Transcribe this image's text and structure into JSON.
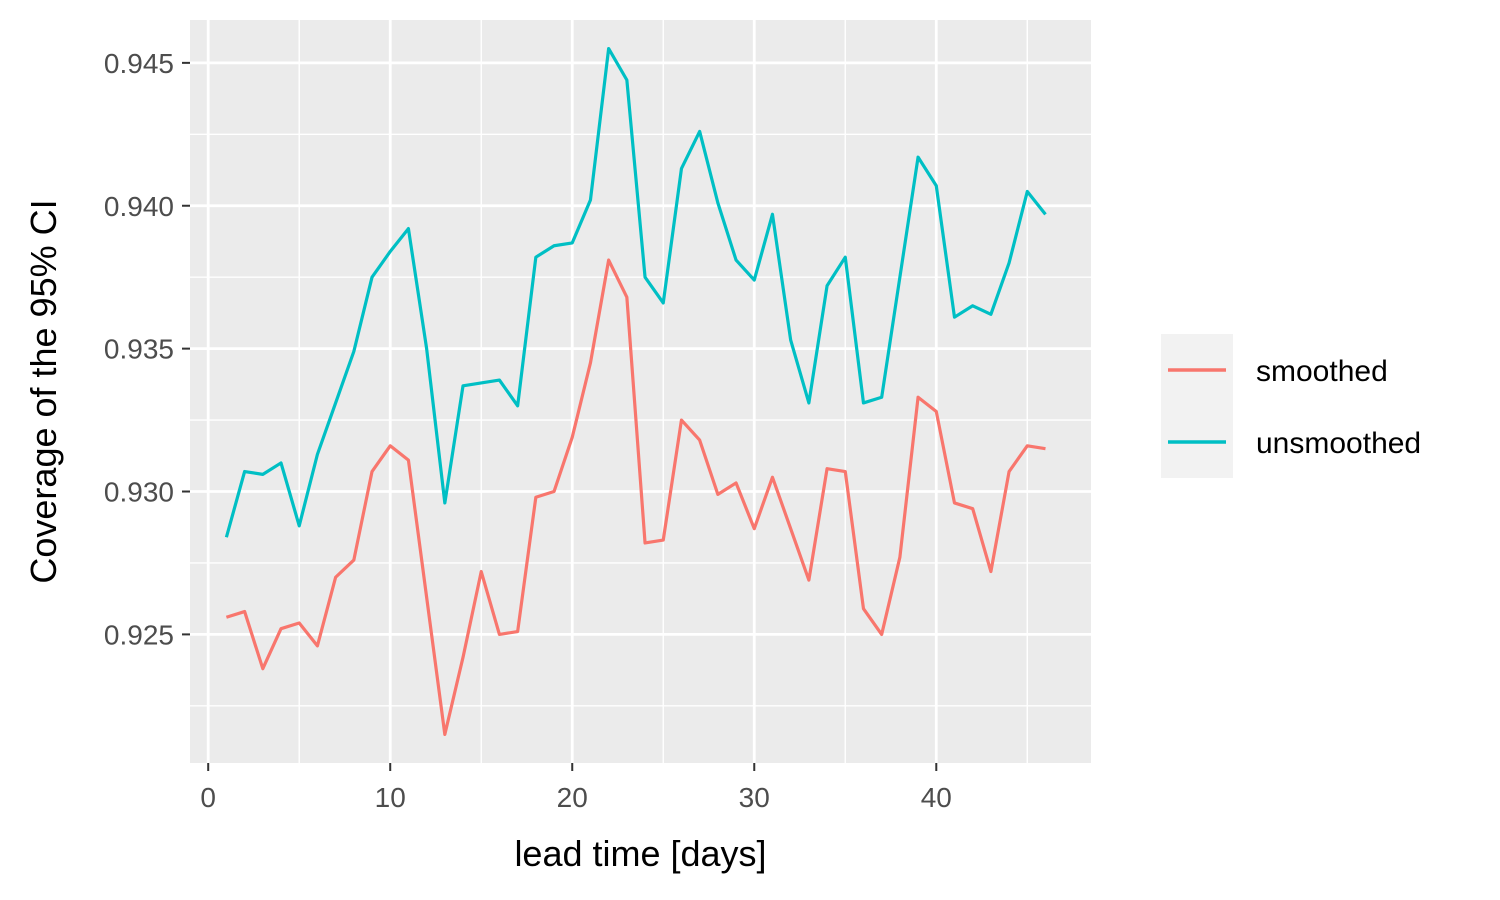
{
  "chart_data": {
    "type": "line",
    "title": "",
    "xlabel": "lead time [days]",
    "ylabel": "Coverage of the 95% CI",
    "xlim": [
      -1,
      48.5
    ],
    "ylim": [
      0.9205,
      0.9465
    ],
    "x_ticks": [
      0,
      10,
      20,
      30,
      40
    ],
    "x_tick_labels": [
      "0",
      "10",
      "20",
      "30",
      "40"
    ],
    "y_ticks": [
      0.925,
      0.93,
      0.935,
      0.94,
      0.945
    ],
    "y_tick_labels": [
      "0.925",
      "0.930",
      "0.935",
      "0.940",
      "0.945"
    ],
    "grid": true,
    "legend_position": "right",
    "x": [
      1,
      2,
      3,
      4,
      5,
      6,
      7,
      8,
      9,
      10,
      11,
      12,
      13,
      14,
      15,
      16,
      17,
      18,
      19,
      20,
      21,
      22,
      23,
      24,
      25,
      26,
      27,
      28,
      29,
      30,
      31,
      32,
      33,
      34,
      35,
      36,
      37,
      38,
      39,
      40,
      41,
      42,
      43,
      44,
      45,
      46
    ],
    "series": [
      {
        "name": "smoothed",
        "color": "#F8766D",
        "values": [
          0.9256,
          0.9258,
          0.9238,
          0.9252,
          0.9254,
          0.9246,
          0.927,
          0.9276,
          0.9307,
          0.9316,
          0.9311,
          0.9263,
          0.9215,
          0.9242,
          0.9272,
          0.925,
          0.9251,
          0.9298,
          0.93,
          0.9319,
          0.9345,
          0.9381,
          0.9368,
          0.9282,
          0.9283,
          0.9325,
          0.9318,
          0.9299,
          0.9303,
          0.9287,
          0.9305,
          0.9287,
          0.9269,
          0.9308,
          0.9307,
          0.9259,
          0.925,
          0.9277,
          0.9333,
          0.9328,
          0.9296,
          0.9294,
          0.9272,
          0.9307,
          0.9316,
          0.9315
        ]
      },
      {
        "name": "unsmoothed",
        "color": "#00BFC4",
        "values": [
          0.9284,
          0.9307,
          0.9306,
          0.931,
          0.9288,
          0.9313,
          0.9331,
          0.9349,
          0.9375,
          0.9384,
          0.9392,
          0.935,
          0.9296,
          0.9337,
          0.9338,
          0.9339,
          0.933,
          0.9382,
          0.9386,
          0.9387,
          0.9402,
          0.9455,
          0.9444,
          0.9375,
          0.9366,
          0.9413,
          0.9426,
          0.9401,
          0.9381,
          0.9374,
          0.9397,
          0.9353,
          0.9331,
          0.9372,
          0.9382,
          0.9331,
          0.9333,
          0.9375,
          0.9417,
          0.9407,
          0.9361,
          0.9365,
          0.9362,
          0.938,
          0.9405,
          0.9397
        ]
      }
    ]
  },
  "style": {
    "panel_bg": "#EBEBEB",
    "grid_color": "#FFFFFF",
    "legend_key_bg": "#F2F2F2"
  }
}
